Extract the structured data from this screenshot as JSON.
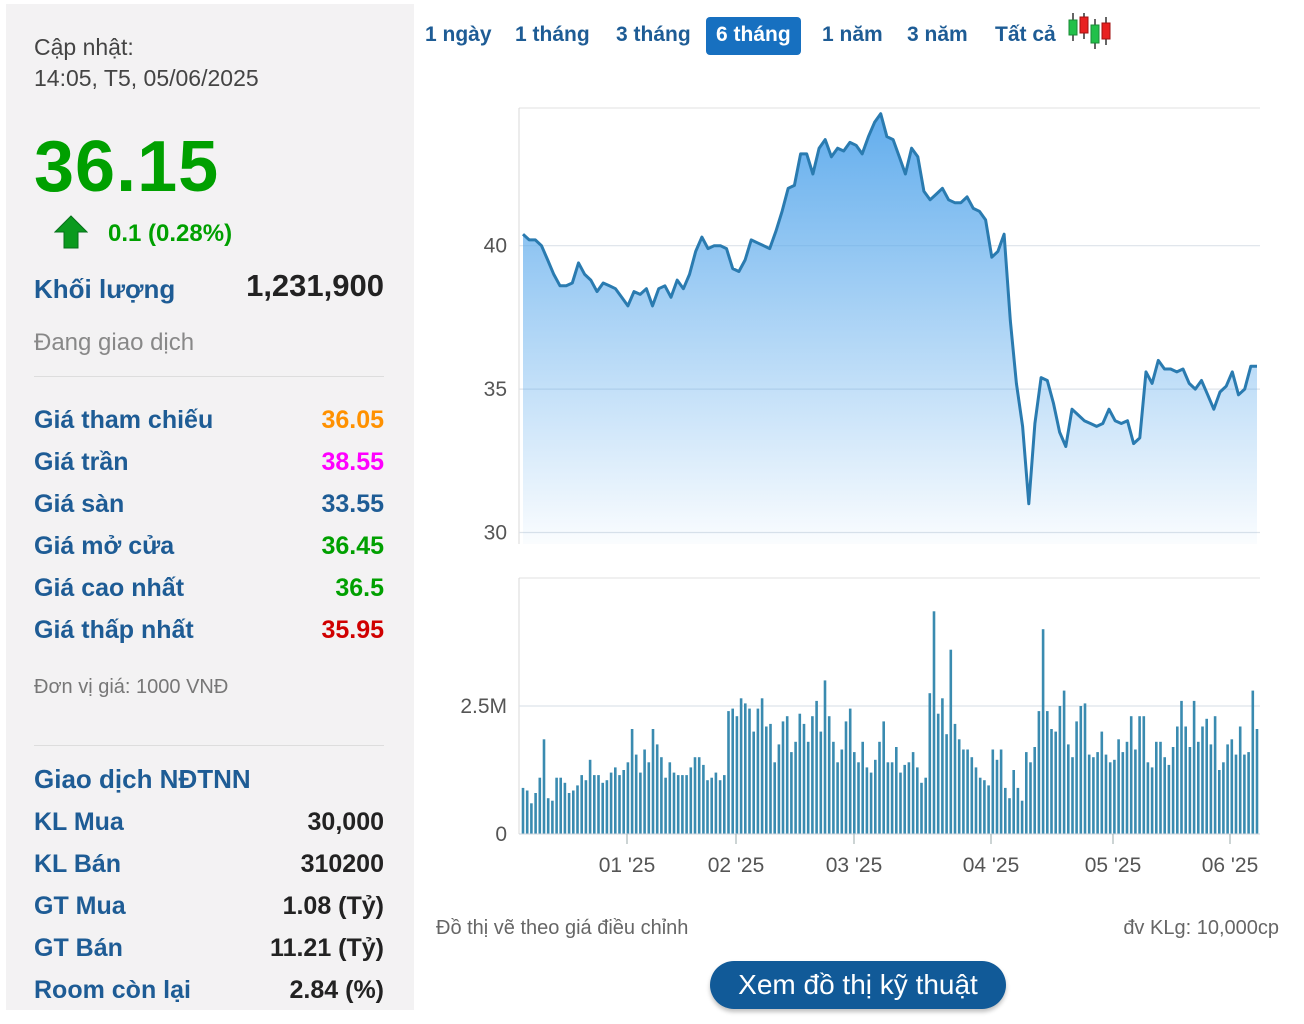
{
  "summary": {
    "update_label": "Cập nhật:",
    "update_time": "14:05, T5, 05/06/2025",
    "price": "36.15",
    "change": "0.1 (0.28%)",
    "volume_label": "Khối lượng",
    "volume": "1,231,900",
    "status": "Đang giao dịch"
  },
  "price_table": [
    {
      "label": "Giá tham chiếu",
      "value": "36.05",
      "color": "#ff9100"
    },
    {
      "label": "Giá trần",
      "value": "38.55",
      "color": "#ff00ff"
    },
    {
      "label": "Giá sàn",
      "value": "33.55",
      "color": "#1e5c95"
    },
    {
      "label": "Giá mở cửa",
      "value": "36.45",
      "color": "#00a000"
    },
    {
      "label": "Giá cao nhất",
      "value": "36.5",
      "color": "#00a000"
    },
    {
      "label": "Giá thấp nhất",
      "value": "35.95",
      "color": "#d00000"
    }
  ],
  "unit_note": "Đơn vị giá: 1000 VNĐ",
  "foreign": {
    "title": "Giao dịch NĐTNN",
    "rows": [
      {
        "label": "KL Mua",
        "value": "30,000"
      },
      {
        "label": "KL Bán",
        "value": "310200"
      },
      {
        "label": "GT Mua",
        "value": "1.08 (Tỷ)"
      },
      {
        "label": "GT Bán",
        "value": "11.21 (Tỷ)"
      },
      {
        "label": "Room còn lại",
        "value": "2.84 (%)"
      }
    ]
  },
  "tabs": [
    {
      "label": "1 ngày",
      "active": false
    },
    {
      "label": "1 tháng",
      "active": false
    },
    {
      "label": "3 tháng",
      "active": false
    },
    {
      "label": "6 tháng",
      "active": true
    },
    {
      "label": "1 năm",
      "active": false
    },
    {
      "label": "3 năm",
      "active": false
    },
    {
      "label": "Tất cả",
      "active": false
    }
  ],
  "candlestick_icon": "candlestick-icon",
  "notes": {
    "adjusted": "Đồ thị vẽ theo giá điều chỉnh",
    "volume_unit": "đv KLg: 10,000cp"
  },
  "tech_button": "Xem đồ thị kỹ thuật",
  "colors": {
    "price_up": "#00a000",
    "line": "#2a7bb0",
    "volume_bar": "#3a8bb0",
    "active_tab": "#1770c0",
    "label_blue": "#1e5c95"
  },
  "chart_data": [
    {
      "type": "area",
      "x_ticks": [
        "01 '25",
        "02 '25",
        "03 '25",
        "04 '25",
        "05 '25",
        "06 '25"
      ],
      "y_ticks": [
        30,
        35,
        40
      ],
      "ylim": [
        29.6,
        44.8
      ],
      "series": [
        {
          "values": [
            40.4,
            40.2,
            40.2,
            40.0,
            39.5,
            39.0,
            38.6,
            38.6,
            38.7,
            39.4,
            39.0,
            38.8,
            38.4,
            38.7,
            38.6,
            38.5,
            38.2,
            37.9,
            38.4,
            38.3,
            38.5,
            37.9,
            38.5,
            38.6,
            38.2,
            38.8,
            38.5,
            39.0,
            39.8,
            40.3,
            39.9,
            40.0,
            40.0,
            39.9,
            39.2,
            39.1,
            39.5,
            40.2,
            40.1,
            40.0,
            39.9,
            40.5,
            41.2,
            42.0,
            42.1,
            43.2,
            43.2,
            42.5,
            43.4,
            43.7,
            43.1,
            43.4,
            43.3,
            43.6,
            43.5,
            43.2,
            43.8,
            44.3,
            44.6,
            43.8,
            43.7,
            43.1,
            42.5,
            43.4,
            43.1,
            41.9,
            41.6,
            41.8,
            42.0,
            41.6,
            41.5,
            41.5,
            41.7,
            41.3,
            41.2,
            40.9,
            39.6,
            39.8,
            40.4,
            37.4,
            35.2,
            33.7,
            31.0,
            33.8,
            35.4,
            35.3,
            34.5,
            33.5,
            33.0,
            34.3,
            34.1,
            33.9,
            33.8,
            33.7,
            33.8,
            34.3,
            33.9,
            33.8,
            33.9,
            33.1,
            33.3,
            35.6,
            35.2,
            36.0,
            35.7,
            35.7,
            35.6,
            35.7,
            35.2,
            35.0,
            35.3,
            34.8,
            34.3,
            34.9,
            35.1,
            35.6,
            34.8,
            35.0,
            35.8,
            35.8
          ]
        }
      ]
    },
    {
      "type": "bar",
      "y_ticks": [
        "0",
        "2.5M"
      ],
      "ylim": [
        0,
        5000000
      ],
      "series": [
        {
          "values": [
            900000,
            850000,
            600000,
            800000,
            1100000,
            1850000,
            700000,
            650000,
            1100000,
            1100000,
            1000000,
            800000,
            850000,
            950000,
            1150000,
            1050000,
            1450000,
            1150000,
            1150000,
            1000000,
            1050000,
            1200000,
            1300000,
            1150000,
            1250000,
            1400000,
            2050000,
            1550000,
            1200000,
            1650000,
            1400000,
            2050000,
            1750000,
            1500000,
            1100000,
            1400000,
            1200000,
            1150000,
            1150000,
            1150000,
            1300000,
            1500000,
            1500000,
            1350000,
            1050000,
            1100000,
            1200000,
            1050000,
            1150000,
            2400000,
            2450000,
            2300000,
            2650000,
            2550000,
            2450000,
            2000000,
            2450000,
            2650000,
            2100000,
            2150000,
            1400000,
            1750000,
            2200000,
            2300000,
            1600000,
            1800000,
            2350000,
            2150000,
            1800000,
            2300000,
            2600000,
            2000000,
            3000000,
            2300000,
            1800000,
            1400000,
            1650000,
            2200000,
            2450000,
            1600000,
            1400000,
            1800000,
            1300000,
            1200000,
            1450000,
            1800000,
            2200000,
            1400000,
            1400000,
            1700000,
            1200000,
            1350000,
            1400000,
            1600000,
            1300000,
            1000000,
            1100000,
            2750000,
            4350000,
            2350000,
            2650000,
            1950000,
            3600000,
            2150000,
            1850000,
            1650000,
            1650000,
            1500000,
            1300000,
            1100000,
            1050000,
            950000,
            1650000,
            1450000,
            1650000,
            900000,
            700000,
            1250000,
            900000,
            650000,
            1600000,
            1400000,
            1700000,
            2400000,
            4000000,
            2400000,
            2050000,
            2000000,
            2500000,
            2800000,
            1750000,
            1500000,
            2200000,
            2500000,
            2550000,
            1550000,
            1500000,
            1600000,
            2000000,
            1550000,
            1400000,
            1450000,
            1850000,
            1600000,
            1800000,
            2300000,
            1650000,
            2300000,
            2300000,
            1400000,
            1300000,
            1800000,
            1800000,
            1500000,
            1350000,
            1700000,
            2100000,
            2600000,
            2100000,
            1700000,
            2600000,
            1800000,
            2100000,
            2250000,
            1750000,
            2300000,
            1250000,
            1400000,
            1750000,
            1850000,
            1550000,
            2100000,
            1550000,
            1600000,
            2800000,
            2050000
          ]
        }
      ]
    }
  ]
}
